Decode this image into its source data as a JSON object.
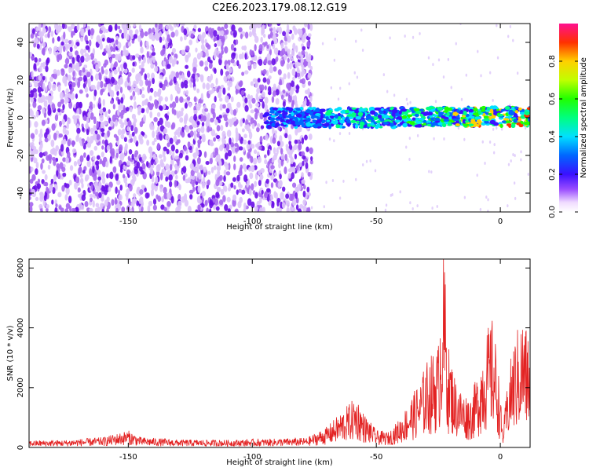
{
  "title": "C2E6.2023.179.08.12.G19",
  "colors": {
    "spectrogram_scatter": "#7a1fe6",
    "snr_line": "#e32222",
    "axes": "#000000"
  },
  "chart_data": [
    {
      "type": "heatmap",
      "xlabel": "Height of straight line (km)",
      "ylabel": "Frequency (Hz)",
      "xlim": [
        -190,
        12
      ],
      "ylim": [
        -50,
        50
      ],
      "xticks": [
        -150,
        -100,
        -50,
        0
      ],
      "yticks": [
        -40,
        -20,
        0,
        20,
        40
      ],
      "grid": false,
      "colorbar": {
        "label": "Normalized spectral amplitude",
        "range": [
          0,
          1
        ],
        "ticks": [
          0.0,
          0.2,
          0.4,
          0.6,
          0.8
        ],
        "colormap": "rainbow (white-purple-blue-cyan-green-yellow-red-magenta)"
      },
      "features": {
        "noise_region_x": [
          -190,
          -76
        ],
        "signal_band_x": [
          -95,
          12
        ],
        "signal_band_freq_hz": [
          -5,
          5
        ],
        "peak_amplitude": 0.9
      }
    },
    {
      "type": "line",
      "xlabel": "Height of straight line (km)",
      "ylabel": "SNR (10 * v/v)",
      "xlim": [
        -190,
        12
      ],
      "ylim": [
        0,
        6300
      ],
      "xticks": [
        -150,
        -100,
        -50,
        0
      ],
      "yticks": [
        0,
        2000,
        4000,
        6000
      ],
      "grid": false,
      "series": [
        {
          "x": [
            -190,
            -175,
            -160,
            -150,
            -145,
            -130,
            -110,
            -90,
            -78,
            -70,
            -62,
            -58,
            -55,
            -50,
            -45,
            -40,
            -35,
            -32,
            -30,
            -27,
            -25,
            -23,
            -21,
            -18,
            -15,
            -12,
            -9,
            -7,
            -5,
            -3,
            -1,
            1,
            3,
            5,
            7,
            9,
            12
          ],
          "y": [
            200,
            220,
            300,
            500,
            300,
            230,
            220,
            260,
            280,
            600,
            1200,
            1500,
            1000,
            500,
            450,
            900,
            1600,
            2000,
            2500,
            2800,
            3000,
            6300,
            3000,
            2000,
            1600,
            1500,
            2200,
            3000,
            3500,
            3800,
            2500,
            500,
            2000,
            3000,
            3500,
            3800,
            3300
          ]
        }
      ]
    }
  ]
}
